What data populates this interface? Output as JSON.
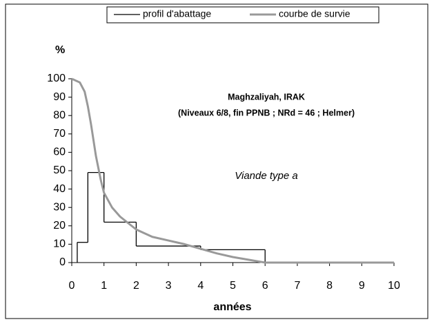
{
  "chart_data": {
    "type": "line",
    "ylabel": "%",
    "xlabel": "années",
    "annotations": [
      "Maghzaliyah, IRAK",
      "(Niveaux 6/8, fin PPNB ; NRd = 46 ; Helmer)",
      "Viande type a"
    ],
    "xlim": [
      0,
      10
    ],
    "xticks": [
      0,
      1,
      2,
      3,
      4,
      5,
      6,
      7,
      8,
      9,
      10
    ],
    "ylim": [
      0,
      100
    ],
    "yticks": [
      0,
      10,
      20,
      30,
      40,
      50,
      60,
      70,
      80,
      90,
      100
    ],
    "series": [
      {
        "name": "profil d'abattage",
        "color": "#000000",
        "bins": [
          0.17,
          0.5,
          1,
          2,
          4,
          6,
          10
        ],
        "values": [
          11,
          49,
          22,
          9,
          7,
          0
        ]
      },
      {
        "name": "courbe de survie",
        "color": "#999999",
        "x": [
          0,
          0.25,
          0.4,
          0.5,
          0.6,
          0.75,
          0.9,
          1,
          1.25,
          1.5,
          2,
          2.5,
          3,
          3.5,
          4,
          4.5,
          5,
          5.5,
          6,
          10
        ],
        "values": [
          100,
          98,
          93,
          85,
          75,
          58,
          45,
          38,
          30,
          25,
          18,
          14,
          12,
          10,
          7.5,
          5,
          3,
          1.5,
          0,
          0
        ]
      }
    ]
  }
}
